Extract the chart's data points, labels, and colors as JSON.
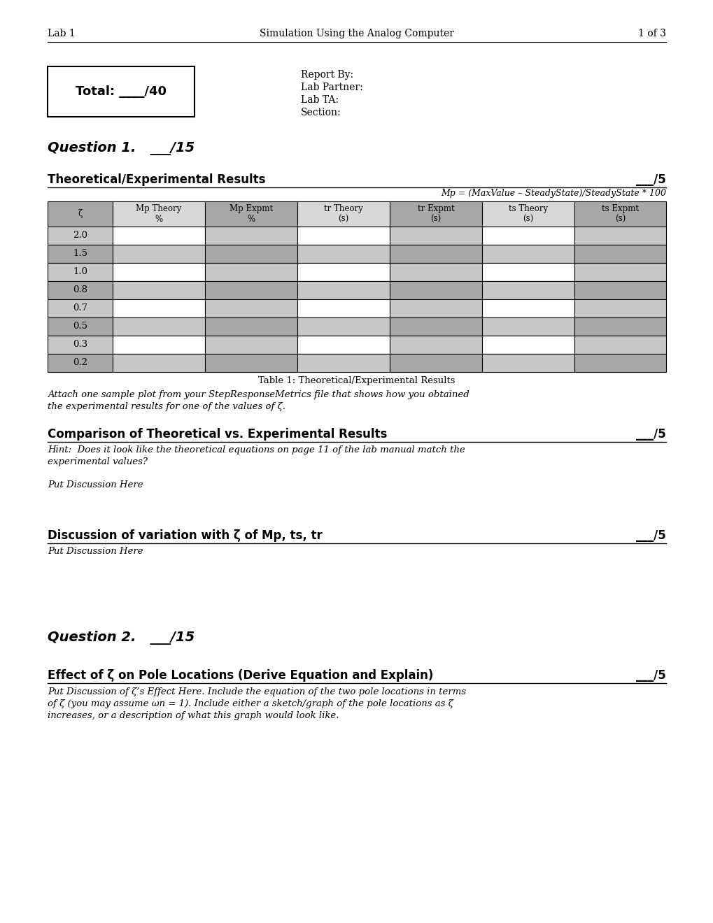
{
  "page_header_left": "Lab 1",
  "page_header_center": "Simulation Using the Analog Computer",
  "page_header_right": "1 of 3",
  "total_box_text": "Total: ____/40",
  "report_by": "Report By:",
  "lab_partner": "Lab Partner:",
  "lab_ta": "Lab TA:",
  "section": "Section:",
  "q1_heading": "Question 1.   ___/15",
  "section1_title": "Theoretical/Experimental Results",
  "section1_score": "___/5",
  "mp_formula": "Mp = (MaxValue – SteadyState)/SteadyState * 100",
  "table_col_headers": [
    "ζ",
    "Mp Theory\n%",
    "Mp Expmt\n%",
    "tr Theory\n(s)",
    "tr Expmt\n(s)",
    "ts Theory\n(s)",
    "ts Expmt\n(s)"
  ],
  "table_rows": [
    "2.0",
    "1.5",
    "1.0",
    "0.8",
    "0.7",
    "0.5",
    "0.3",
    "0.2"
  ],
  "shaded_rows": [
    1,
    3,
    5,
    7
  ],
  "table_caption": "Table 1: Theoretical/Experimental Results",
  "attach_text1": "Attach one sample plot from your StepResponseMetrics file that shows how you obtained",
  "attach_text2": "the experimental results for one of the values of ζ.",
  "section2_title": "Comparison of Theoretical vs. Experimental Results",
  "section2_score": "___/5",
  "hint_text1": "Hint:  Does it look like the theoretical equations on page 11 of the lab manual match the",
  "hint_text2": "experimental values?",
  "put_discussion_here1": "Put Discussion Here",
  "section3_title": "Discussion of variation with ζ of Mp, ts, tr",
  "section3_score": "___/5",
  "put_discussion_here2": "Put Discussion Here",
  "q2_heading": "Question 2.   ___/15",
  "section4_title": "Effect of ζ on Pole Locations (Derive Equation and Explain)",
  "section4_score": "___/5",
  "pole_text1": "Put Discussion of ζ’s Effect Here. Include the equation of the two pole locations in terms",
  "pole_text2": "of ζ (you may assume ωn = 1). Include either a sketch/graph of the pole locations as ζ",
  "pole_text3": "increases, or a description of what this graph would look like.",
  "bg_color": "#ffffff",
  "text_color": "#000000",
  "shade_dark": "#a8a8a8",
  "shade_medium": "#c8c8c8",
  "shade_light": "#d8d8d8"
}
